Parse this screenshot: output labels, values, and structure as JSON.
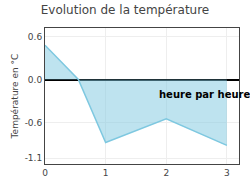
{
  "chart_data": {
    "type": "area",
    "title": "Evolution de la température",
    "y_label": "Température en °C",
    "x": [
      0,
      0.55,
      1.0,
      2.0,
      3.0
    ],
    "series": [
      {
        "color": "#7ec8e0",
        "values": [
          0.48,
          0.0,
          -0.88,
          -0.55,
          -0.92
        ]
      }
    ],
    "xlim": [
      0,
      3.2
    ],
    "xticks": [
      0,
      1,
      2,
      3
    ],
    "ylim": [
      -1.18,
      0.72
    ],
    "yticks": [
      -1.1,
      -0.6,
      {
        "value": 0.0,
        "label": "0.0"
      },
      0.6
    ],
    "annotations": [
      {
        "text": "heure par heure",
        "x": 1.85,
        "y": -0.32
      }
    ],
    "grid": true
  }
}
